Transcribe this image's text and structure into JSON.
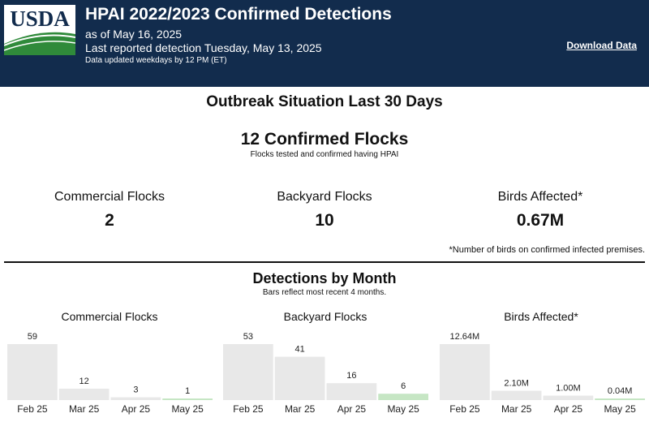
{
  "header": {
    "logo_text": "USDA",
    "title": "HPAI 2022/2023 Confirmed Detections",
    "as_of": "as of May 16, 2025",
    "last_detection": "Last reported detection Tuesday, May 13, 2025",
    "update_note": "Data updated weekdays by 12 PM (ET)",
    "download_label": "Download Data",
    "colors": {
      "background": "#122c4d",
      "logo_green": "#2f8a3a"
    }
  },
  "outbreak": {
    "title": "Outbreak Situation Last 30 Days",
    "total_label": "12 Confirmed Flocks",
    "total_subtitle": "Flocks tested and confirmed having HPAI",
    "kpis": [
      {
        "label": "Commercial Flocks",
        "value": "2"
      },
      {
        "label": "Backyard Flocks",
        "value": "10"
      },
      {
        "label": "Birds Affected*",
        "value": "0.67M"
      }
    ],
    "footnote": "*Number of birds on confirmed infected premises."
  },
  "detections": {
    "title": "Detections by Month",
    "subtitle": "Bars reflect most recent 4 months."
  },
  "chart_data": [
    {
      "type": "bar",
      "title": "Commercial Flocks",
      "categories": [
        "Feb 25",
        "Mar 25",
        "Apr 25",
        "May 25"
      ],
      "values": [
        59,
        12,
        3,
        1
      ],
      "labels": [
        "59",
        "12",
        "3",
        "1"
      ],
      "colors": [
        "#e8e8e8",
        "#e8e8e8",
        "#e8e8e8",
        "#c6e6c4"
      ]
    },
    {
      "type": "bar",
      "title": "Backyard Flocks",
      "categories": [
        "Feb 25",
        "Mar 25",
        "Apr 25",
        "May 25"
      ],
      "values": [
        53,
        41,
        16,
        6
      ],
      "labels": [
        "53",
        "41",
        "16",
        "6"
      ],
      "colors": [
        "#e8e8e8",
        "#e8e8e8",
        "#e8e8e8",
        "#c6e6c4"
      ]
    },
    {
      "type": "bar",
      "title": "Birds Affected*",
      "categories": [
        "Feb 25",
        "Mar 25",
        "Apr 25",
        "May 25"
      ],
      "values": [
        12.64,
        2.1,
        1.0,
        0.04
      ],
      "labels": [
        "12.64M",
        "2.10M",
        "1.00M",
        "0.04M"
      ],
      "colors": [
        "#e8e8e8",
        "#e8e8e8",
        "#e8e8e8",
        "#c6e6c4"
      ]
    }
  ]
}
